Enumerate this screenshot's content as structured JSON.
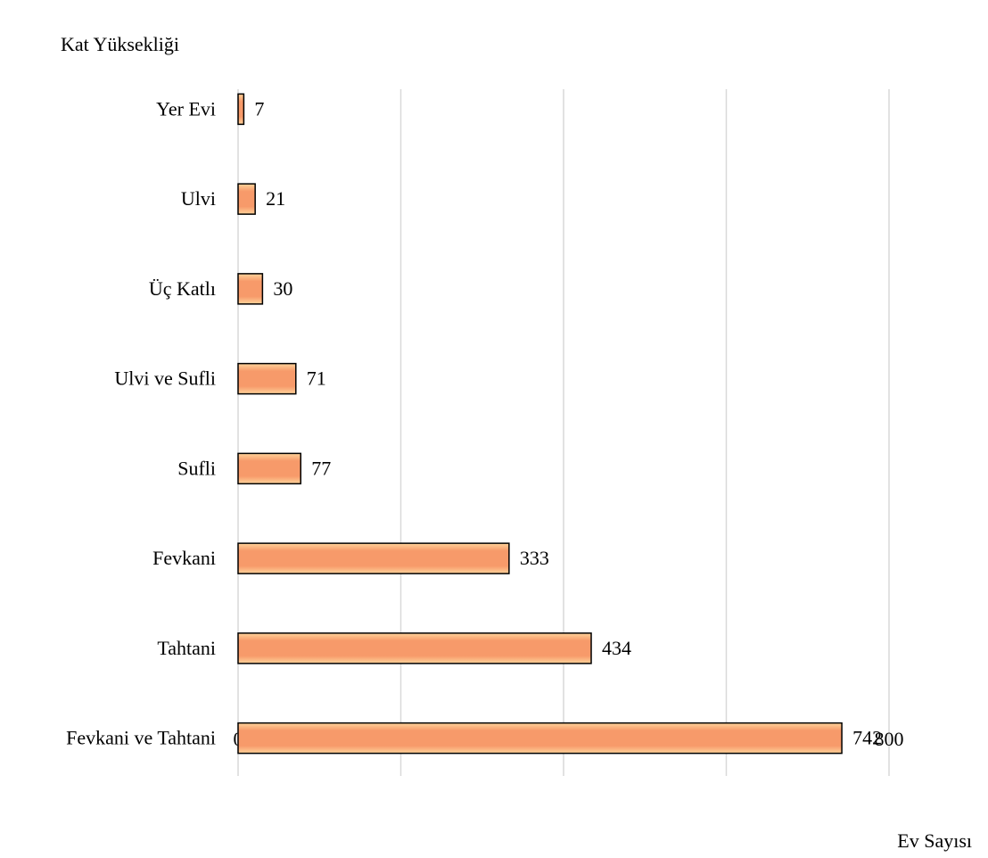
{
  "chart_data": {
    "type": "bar",
    "orientation": "horizontal",
    "y_label": "Kat Yüksekliği",
    "x_label": "Ev Sayısı",
    "categories": [
      "Yer Evi",
      "Ulvi",
      "Üç Katlı",
      "Ulvi ve Sufli",
      "Sufli",
      "Fevkani",
      "Tahtani",
      "Fevkani ve Tahtani"
    ],
    "values": [
      7,
      21,
      30,
      71,
      77,
      333,
      434,
      742
    ],
    "color": "#f79a6a",
    "xlim": [
      0,
      800
    ],
    "xticks": [
      0,
      200,
      400,
      600,
      800
    ],
    "grid": true
  }
}
